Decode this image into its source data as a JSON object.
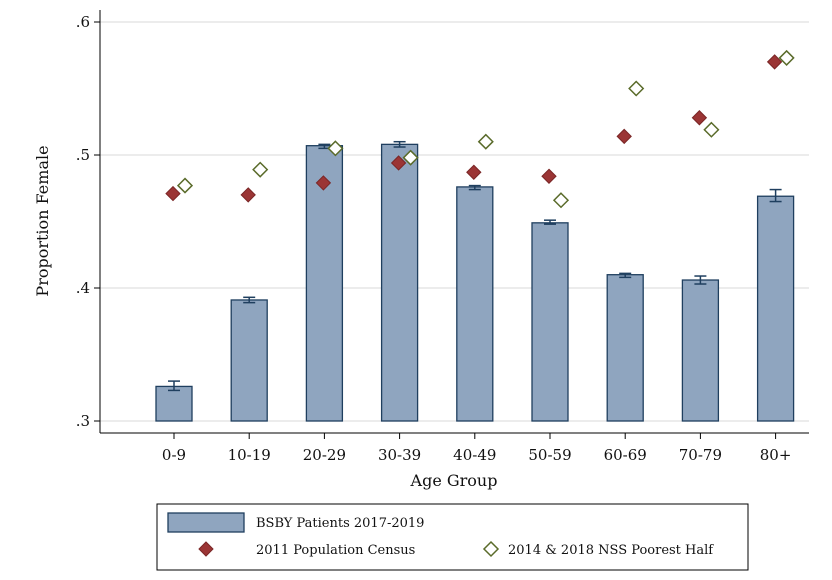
{
  "chart_data": {
    "type": "bar",
    "title": "",
    "xlabel": "Age Group",
    "ylabel": "Proportion Female",
    "ylim": [
      0.3,
      0.6
    ],
    "yticks": [
      0.3,
      0.4,
      0.5,
      0.6
    ],
    "ytick_labels": [
      ".3",
      ".4",
      ".5",
      ".6"
    ],
    "grid": "horizontal",
    "legend_position": "bottom",
    "categories": [
      "0-9",
      "10-19",
      "20-29",
      "30-39",
      "40-49",
      "50-59",
      "60-69",
      "70-79",
      "80+"
    ],
    "series": [
      {
        "name": "BSBY Patients 2017-2019",
        "kind": "bar",
        "color": "#8fa5bf",
        "edge_color": "#1f3f5f",
        "values": [
          0.326,
          0.391,
          0.507,
          0.508,
          0.476,
          0.449,
          0.41,
          0.406,
          0.469
        ],
        "error_low": [
          0.323,
          0.389,
          0.505,
          0.506,
          0.474,
          0.448,
          0.408,
          0.403,
          0.465
        ],
        "error_high": [
          0.33,
          0.393,
          0.508,
          0.51,
          0.477,
          0.451,
          0.411,
          0.409,
          0.474
        ]
      },
      {
        "name": "2011 Population Census",
        "kind": "scatter",
        "marker": "diamond-filled",
        "color": "#9b3535",
        "values": [
          0.471,
          0.47,
          0.479,
          0.494,
          0.487,
          0.484,
          0.514,
          0.528,
          0.57
        ]
      },
      {
        "name": "2014 & 2018 NSS Poorest Half",
        "kind": "scatter",
        "marker": "diamond-hollow",
        "color": "#5a6b2a",
        "values": [
          0.477,
          0.489,
          0.505,
          0.498,
          0.51,
          0.466,
          0.55,
          0.519,
          0.573
        ]
      }
    ]
  }
}
